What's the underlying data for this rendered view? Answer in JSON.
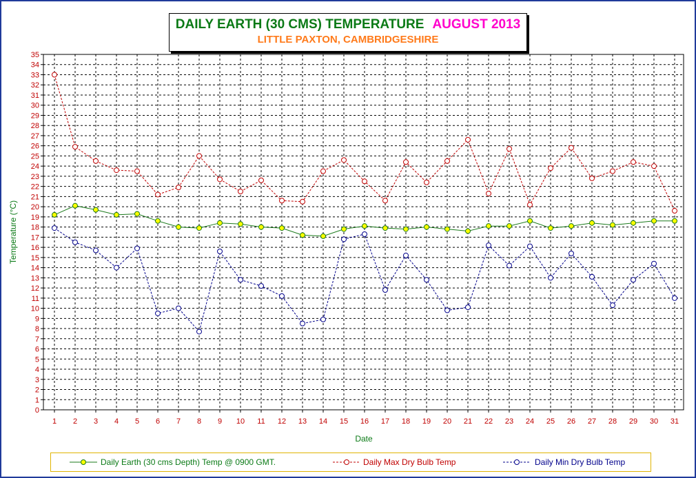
{
  "chart_data": {
    "type": "line",
    "title": "DAILY EARTH (30 CMS) TEMPERATURE",
    "title_month": "AUGUST 2013",
    "subtitle": "LITTLE PAXTON, CAMBRIDGESHIRE",
    "xlabel": "Date",
    "ylabel": "Temperature (°C)",
    "ylim": [
      0,
      35
    ],
    "y_step": 1,
    "grid": true,
    "legend_position": "bottom",
    "x": [
      1,
      2,
      3,
      4,
      5,
      6,
      7,
      8,
      9,
      10,
      11,
      12,
      13,
      14,
      15,
      16,
      17,
      18,
      19,
      20,
      21,
      22,
      23,
      24,
      25,
      26,
      27,
      28,
      29,
      30,
      31
    ],
    "series": [
      {
        "name": "Daily Earth (30 cms Depth) Temp @ 0900 GMT.",
        "color": "#1a7a1a",
        "marker_color": "#ffff00",
        "line_style": "solid",
        "values": [
          19.2,
          20.1,
          19.7,
          19.2,
          19.3,
          18.6,
          18.0,
          17.9,
          18.4,
          18.3,
          18.0,
          17.9,
          17.2,
          17.1,
          17.8,
          18.1,
          17.9,
          17.8,
          18.0,
          17.8,
          17.6,
          18.1,
          18.1,
          18.6,
          17.9,
          18.1,
          18.4,
          18.2,
          18.4,
          18.6,
          18.6
        ]
      },
      {
        "name": "Daily Max Dry Bulb Temp",
        "color": "#c00000",
        "marker_color": "#ffffff",
        "line_style": "dashed",
        "values": [
          33.0,
          25.9,
          24.5,
          23.6,
          23.5,
          21.2,
          21.9,
          25.0,
          22.7,
          21.5,
          22.6,
          20.6,
          20.5,
          23.5,
          24.6,
          22.5,
          20.6,
          24.4,
          22.4,
          24.5,
          26.6,
          21.3,
          25.7,
          20.2,
          23.8,
          25.8,
          22.8,
          23.5,
          24.4,
          24.0,
          19.6
        ]
      },
      {
        "name": "Daily Min Dry Bulb Temp",
        "color": "#00008b",
        "marker_color": "#ffffff",
        "line_style": "dashed",
        "values": [
          17.9,
          16.5,
          15.7,
          14.0,
          15.9,
          9.5,
          10.0,
          7.7,
          15.6,
          12.8,
          12.2,
          11.2,
          8.5,
          8.9,
          16.8,
          17.3,
          11.8,
          15.2,
          12.8,
          9.8,
          10.1,
          16.2,
          14.2,
          16.1,
          13.0,
          15.4,
          13.1,
          10.3,
          12.8,
          14.4,
          11.0
        ]
      }
    ]
  }
}
